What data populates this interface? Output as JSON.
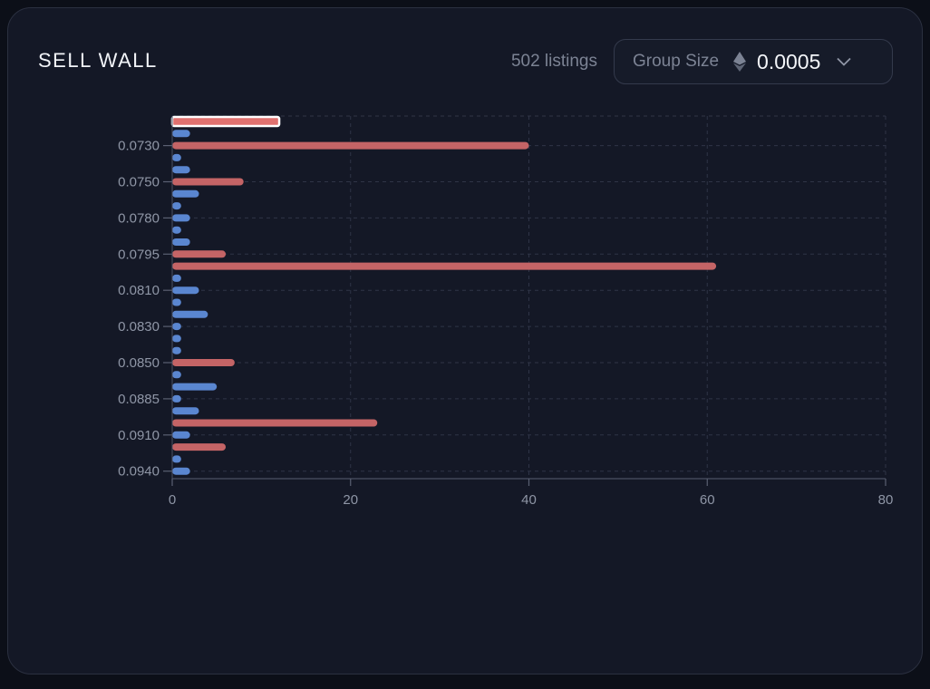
{
  "header": {
    "title": "SELL WALL",
    "listings": "502 listings",
    "group_size_label": "Group Size",
    "group_size_value": "0.0005",
    "currency_icon": "eth-icon",
    "dropdown_icon": "chevron-down-icon"
  },
  "colors": {
    "background": "#141826",
    "bar_red": "#c46466",
    "bar_blue": "#5a86d0",
    "highlight_outline": "#ffffff"
  },
  "chart_data": {
    "type": "bar",
    "orientation": "horizontal",
    "title": "",
    "xlabel": "",
    "ylabel": "",
    "xlim": [
      0,
      80
    ],
    "x_ticks": [
      "0",
      "20",
      "40",
      "60",
      "80"
    ],
    "grid": true,
    "y_tick_labels": [
      "0.0730",
      "0.0750",
      "0.0780",
      "0.0795",
      "0.0810",
      "0.0830",
      "0.0850",
      "0.0885",
      "0.0910",
      "0.0940"
    ],
    "y_tick_rows": [
      2,
      5,
      8,
      11,
      14,
      17,
      20,
      23,
      26,
      29
    ],
    "values": [
      12,
      2,
      40,
      1,
      2,
      8,
      3,
      1,
      2,
      1,
      2,
      6,
      61,
      1,
      3,
      1,
      4,
      1,
      1,
      1,
      7,
      1,
      5,
      1,
      3,
      23,
      2,
      6,
      1,
      2
    ],
    "colors": [
      "red",
      "blue",
      "red",
      "blue",
      "blue",
      "red",
      "blue",
      "blue",
      "blue",
      "blue",
      "blue",
      "red",
      "red",
      "blue",
      "blue",
      "blue",
      "blue",
      "blue",
      "blue",
      "blue",
      "red",
      "blue",
      "blue",
      "blue",
      "blue",
      "red",
      "blue",
      "red",
      "blue",
      "blue"
    ],
    "highlighted_index": 0
  }
}
